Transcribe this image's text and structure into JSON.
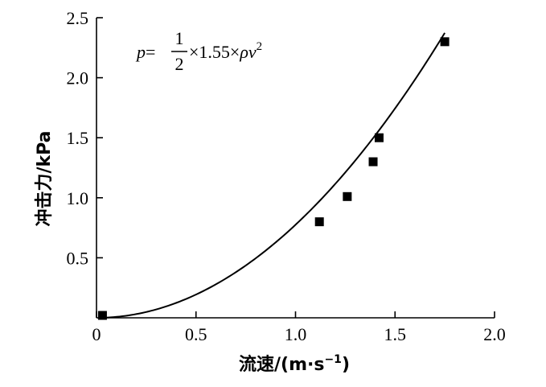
{
  "chart_data": {
    "type": "scatter",
    "x": [
      0.03,
      1.12,
      1.26,
      1.39,
      1.42,
      1.75
    ],
    "y": [
      0.02,
      0.8,
      1.01,
      1.3,
      1.5,
      2.3
    ],
    "fit": {
      "coefficient": 1.55,
      "rho": 1.0
    },
    "xlim": [
      0,
      2.0
    ],
    "ylim": [
      0,
      2.5
    ],
    "xticks": [
      0,
      0.5,
      1.0,
      1.5,
      2.0
    ],
    "yticks": [
      0.5,
      1.0,
      1.5,
      2.0,
      2.5
    ],
    "xtick_labels": [
      "0",
      "0.5",
      "1.0",
      "1.5",
      "2.0"
    ],
    "ytick_labels": [
      "0.5",
      "1.0",
      "1.5",
      "2.0",
      "2.5"
    ],
    "xlabel": "流速/(m·s",
    "xlabel_exp": "−1",
    "xlabel_close": ")",
    "ylabel": "冲击力/kPa",
    "annotation": {
      "p": "p",
      "eq": "=",
      "num": "1",
      "den": "2",
      "mid": "×1.55×",
      "rho": "ρ",
      "v": "v",
      "exp": "2"
    },
    "grid": false,
    "legend": "none",
    "marker": "square",
    "color": "#000000"
  }
}
